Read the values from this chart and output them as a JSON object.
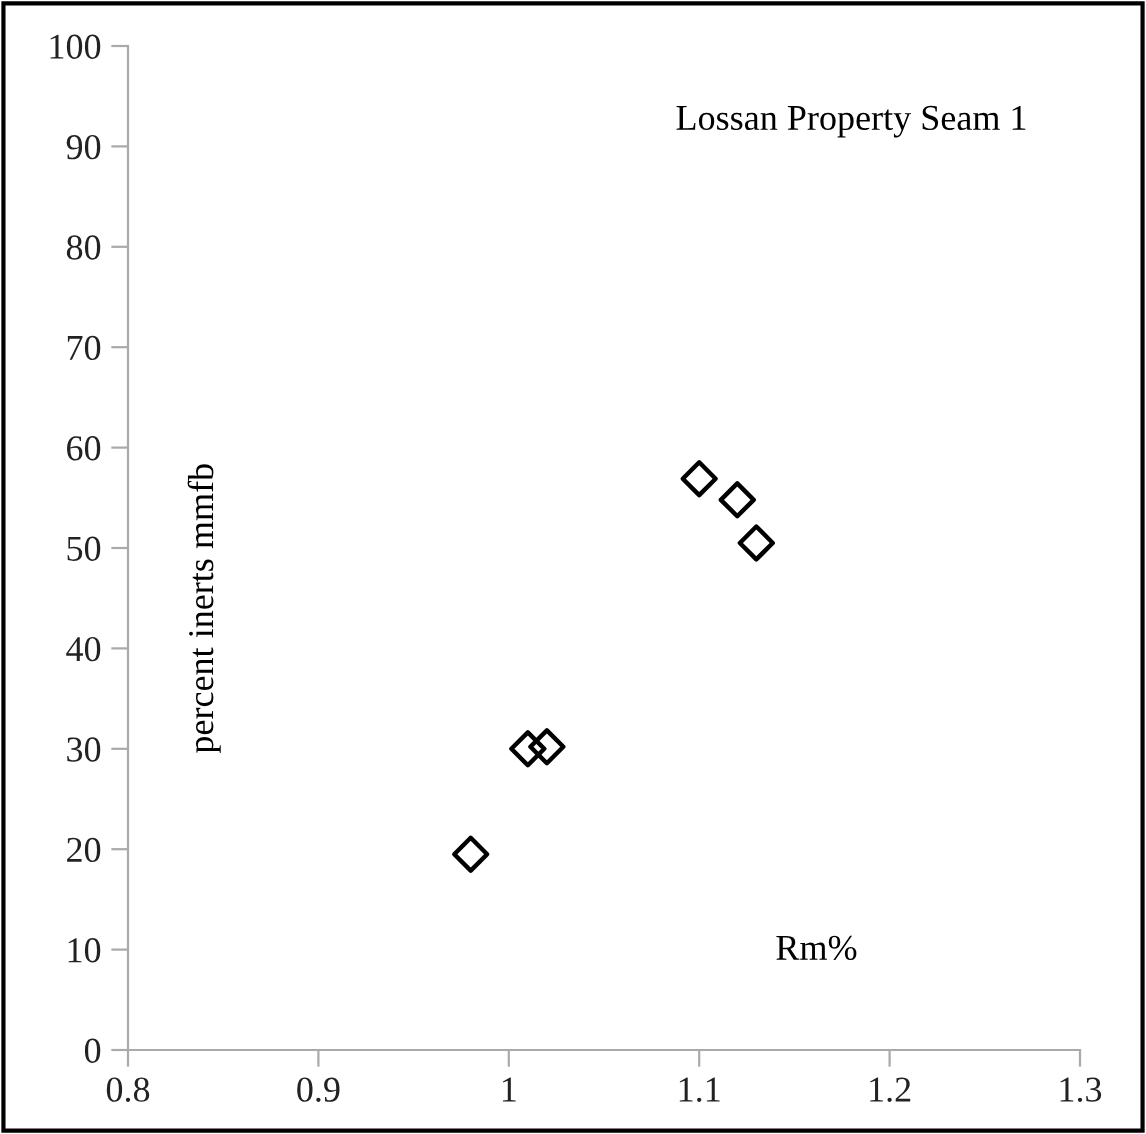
{
  "chart_data": {
    "type": "scatter",
    "title": "Lossan Property Seam 1",
    "xlabel": "Rm%",
    "ylabel": "percent inerts mmfb",
    "x": [
      0.98,
      1.01,
      1.02,
      1.1,
      1.12,
      1.13
    ],
    "series": [
      {
        "color": "#000000",
        "values": [
          19.5,
          30.0,
          30.2,
          56.9,
          54.8,
          50.5
        ]
      }
    ],
    "marker": "diamond",
    "xlim": [
      0.8,
      1.3
    ],
    "xticks": [
      0.8,
      0.9,
      {
        "value": 1.0,
        "label": "1"
      },
      1.1,
      1.2,
      1.3
    ],
    "ylim": [
      0,
      100
    ],
    "yticks": [
      0,
      10,
      20,
      30,
      40,
      50,
      60,
      70,
      80,
      90,
      100
    ],
    "grid": false,
    "legend": false
  }
}
